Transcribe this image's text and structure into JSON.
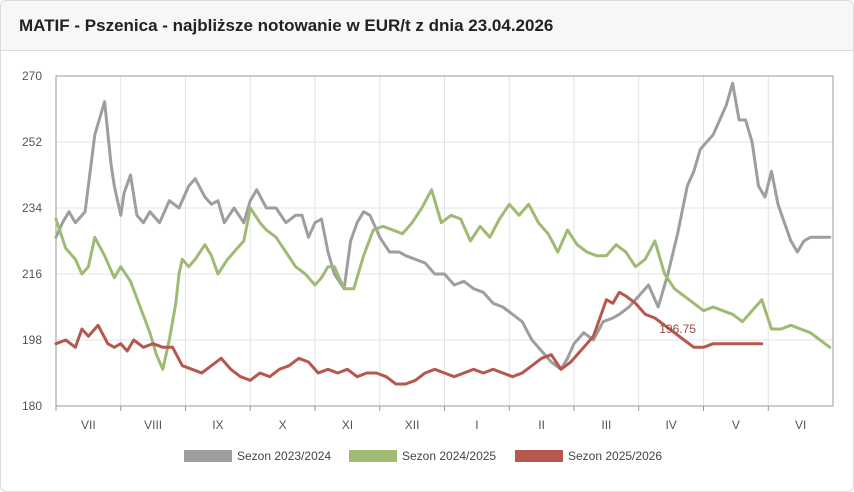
{
  "header": {
    "title": "MATIF - Pszenica - najbliższe notowanie w EUR/t z dnia 23.04.2026"
  },
  "chart_data": {
    "type": "line",
    "title": "MATIF - Pszenica - najbliższe notowanie w EUR/t z dnia 23.04.2026",
    "xlabel": "",
    "ylabel": "",
    "ylim": [
      180,
      270
    ],
    "yticks": [
      "180",
      "198",
      "216",
      "234",
      "252",
      "270"
    ],
    "ytick_values": [
      180,
      198,
      216,
      234,
      252,
      270
    ],
    "month_labels": [
      "VII",
      "VIII",
      "IX",
      "X",
      "XI",
      "XII",
      "I",
      "II",
      "III",
      "IV",
      "V",
      "VI"
    ],
    "x_range": [
      0,
      12
    ],
    "grid": true,
    "legend_position": "bottom",
    "annotation": {
      "text": "196.75",
      "x": 9.6,
      "y": 201
    },
    "series": [
      {
        "name": "Sezon 2023/2024",
        "color": "#9e9e9e",
        "x": [
          0,
          0.1,
          0.2,
          0.3,
          0.45,
          0.6,
          0.75,
          0.85,
          0.9,
          1.0,
          1.05,
          1.15,
          1.25,
          1.35,
          1.45,
          1.6,
          1.75,
          1.9,
          2.05,
          2.15,
          2.3,
          2.4,
          2.5,
          2.6,
          2.75,
          2.9,
          3.0,
          3.1,
          3.25,
          3.4,
          3.55,
          3.7,
          3.8,
          3.9,
          4.0,
          4.1,
          4.2,
          4.3,
          4.45,
          4.55,
          4.65,
          4.75,
          4.85,
          5.0,
          5.15,
          5.3,
          5.4,
          5.55,
          5.7,
          5.85,
          6.0,
          6.15,
          6.3,
          6.45,
          6.6,
          6.75,
          6.9,
          7.05,
          7.2,
          7.35,
          7.5,
          7.65,
          7.8,
          7.9,
          8.0,
          8.15,
          8.3,
          8.45,
          8.6,
          8.7,
          8.85,
          9.0,
          9.15,
          9.3,
          9.45,
          9.6,
          9.75,
          9.85,
          9.95,
          10.05,
          10.15,
          10.25,
          10.35,
          10.45,
          10.55,
          10.65,
          10.75,
          10.85,
          10.95,
          11.05,
          11.15,
          11.25,
          11.35,
          11.45,
          11.55,
          11.65,
          11.75,
          11.85,
          11.95
        ],
        "values": [
          226,
          230,
          233,
          230,
          233,
          254,
          263,
          246,
          240,
          232,
          238,
          243,
          232,
          230,
          233,
          230,
          236,
          234,
          240,
          242,
          237,
          235,
          236,
          230,
          234,
          230,
          236,
          239,
          234,
          234,
          230,
          232,
          232,
          226,
          230,
          231,
          222,
          216,
          212,
          225,
          230,
          233,
          232,
          226,
          222,
          222,
          221,
          220,
          219,
          216,
          216,
          213,
          214,
          212,
          211,
          208,
          207,
          205,
          203,
          198,
          195,
          192,
          190,
          193,
          197,
          200,
          198,
          203,
          204,
          205,
          207,
          210,
          213,
          207,
          216,
          227,
          240,
          244,
          250,
          252,
          254,
          258,
          262,
          268,
          258,
          258,
          252,
          240,
          237,
          244,
          235,
          230,
          225,
          222,
          225,
          226,
          226,
          226,
          226
        ]
      },
      {
        "name": "Sezon 2024/2025",
        "color": "#9fbb73",
        "x": [
          0,
          0.15,
          0.3,
          0.4,
          0.5,
          0.6,
          0.75,
          0.9,
          1.0,
          1.15,
          1.3,
          1.45,
          1.55,
          1.65,
          1.75,
          1.85,
          1.9,
          1.95,
          2.05,
          2.15,
          2.3,
          2.4,
          2.5,
          2.65,
          2.8,
          2.9,
          3.0,
          3.15,
          3.25,
          3.4,
          3.55,
          3.7,
          3.85,
          4.0,
          4.1,
          4.2,
          4.3,
          4.45,
          4.6,
          4.75,
          4.9,
          5.05,
          5.2,
          5.35,
          5.5,
          5.65,
          5.8,
          5.95,
          6.1,
          6.25,
          6.4,
          6.55,
          6.7,
          6.85,
          7.0,
          7.15,
          7.3,
          7.45,
          7.6,
          7.75,
          7.9,
          8.05,
          8.2,
          8.35,
          8.5,
          8.65,
          8.8,
          8.95,
          9.1,
          9.25,
          9.4,
          9.55,
          9.7,
          9.85,
          10.0,
          10.15,
          10.3,
          10.45,
          10.6,
          10.75,
          10.9,
          11.05,
          11.2,
          11.35,
          11.5,
          11.65,
          11.8,
          11.95
        ],
        "values": [
          231,
          223,
          220,
          216,
          218,
          226,
          221,
          215,
          218,
          214,
          207,
          200,
          194,
          190,
          198,
          208,
          216,
          220,
          218,
          220,
          224,
          221,
          216,
          220,
          223,
          225,
          234,
          230,
          228,
          226,
          222,
          218,
          216,
          213,
          215,
          218,
          218,
          212,
          212,
          221,
          228,
          229,
          228,
          227,
          230,
          234,
          239,
          230,
          232,
          231,
          225,
          229,
          226,
          231,
          235,
          232,
          235,
          230,
          227,
          222,
          228,
          224,
          222,
          221,
          221,
          224,
          222,
          218,
          220,
          225,
          216,
          212,
          210,
          208,
          206,
          207,
          206,
          205,
          203,
          206,
          209,
          201,
          201,
          202,
          201,
          200,
          198,
          196
        ]
      },
      {
        "name": "Sezon 2025/2026",
        "color": "#b5584d",
        "x": [
          0,
          0.15,
          0.3,
          0.4,
          0.5,
          0.65,
          0.8,
          0.9,
          1.0,
          1.1,
          1.2,
          1.35,
          1.5,
          1.65,
          1.8,
          1.95,
          2.1,
          2.25,
          2.4,
          2.55,
          2.7,
          2.85,
          3.0,
          3.15,
          3.3,
          3.45,
          3.6,
          3.75,
          3.9,
          4.05,
          4.2,
          4.35,
          4.5,
          4.65,
          4.8,
          4.95,
          5.1,
          5.25,
          5.4,
          5.55,
          5.7,
          5.85,
          6.0,
          6.15,
          6.3,
          6.45,
          6.6,
          6.75,
          6.9,
          7.05,
          7.2,
          7.35,
          7.5,
          7.65,
          7.8,
          7.95,
          8.1,
          8.2,
          8.3,
          8.4,
          8.5,
          8.6,
          8.7,
          8.8,
          8.95,
          9.1,
          9.25,
          9.4,
          9.55,
          9.7,
          9.85,
          10.0,
          10.15,
          10.3,
          10.45,
          10.6,
          10.75,
          10.9
        ],
        "values": [
          197,
          198,
          196,
          201,
          199,
          202,
          197,
          196,
          197,
          195,
          198,
          196,
          197,
          196,
          196,
          191,
          190,
          189,
          191,
          193,
          190,
          188,
          187,
          189,
          188,
          190,
          191,
          193,
          192,
          189,
          190,
          189,
          190,
          188,
          189,
          189,
          188,
          186,
          186,
          187,
          189,
          190,
          189,
          188,
          189,
          190,
          189,
          190,
          189,
          188,
          189,
          191,
          193,
          194,
          190,
          192,
          195,
          197,
          199,
          204,
          209,
          208,
          211,
          210,
          208,
          205,
          204,
          202,
          200,
          198,
          196,
          196,
          197,
          197,
          197,
          197,
          197,
          197
        ]
      }
    ]
  }
}
